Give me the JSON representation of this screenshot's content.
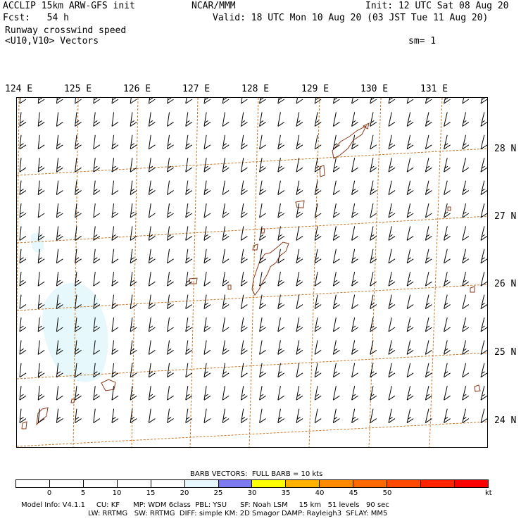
{
  "header": {
    "model_line": "ACCLIP 15km ARW-GFS init",
    "center_line": "NCAR/MMM",
    "init_line": "Init: 12 UTC Sat 08 Aug 20",
    "fcst_line": "Fcst:   54 h",
    "valid_line": "Valid: 18 UTC Mon 10 Aug 20 (03 JST Tue 11 Aug 20)",
    "field_line": "Runway crosswind speed",
    "vector_line": "<U10,V10> Vectors",
    "smooth_line": "sm= 1"
  },
  "map": {
    "lon_labels": [
      "124 E",
      "125 E",
      "126 E",
      "127 E",
      "128 E",
      "129 E",
      "130 E",
      "131 E"
    ],
    "lat_labels": [
      "28 N",
      "27 N",
      "26 N",
      "25 N",
      "24 N"
    ],
    "grid_color": "#c8782a",
    "coast_color": "#8b3a1a",
    "shade_color": "#e6f8fb",
    "barb_color": "#000000",
    "wind_direction": "southerly to south-southwesterly, approx. 10-15 kt"
  },
  "legend": {
    "barb_title": "BARB VECTORS:  FULL BARB = 10 kts",
    "unit": "kt",
    "colors": [
      "#ffffff",
      "#ffffff",
      "#ffffff",
      "#ffffff",
      "#ffffff",
      "#e6f8fb",
      "#7b7bef",
      "#ffff00",
      "#ffb100",
      "#ff8a00",
      "#ff6a00",
      "#ff4a00",
      "#ff2400",
      "#ff0000"
    ],
    "ticks": [
      "0",
      "5",
      "10",
      "15",
      "20",
      "25",
      "30",
      "35",
      "40",
      "45",
      "50"
    ]
  },
  "footer": {
    "line1": "Model Info: V4.1.1     CU: KF      MP: WDM 6class  PBL: YSU      SF: Noah LSM     15 km   51 levels   90 sec",
    "line2": "LW: RRTMG   SW: RRTMG  DIFF: simple KM: 2D Smagor DAMP: Rayleigh3  SFLAY: MM5"
  }
}
